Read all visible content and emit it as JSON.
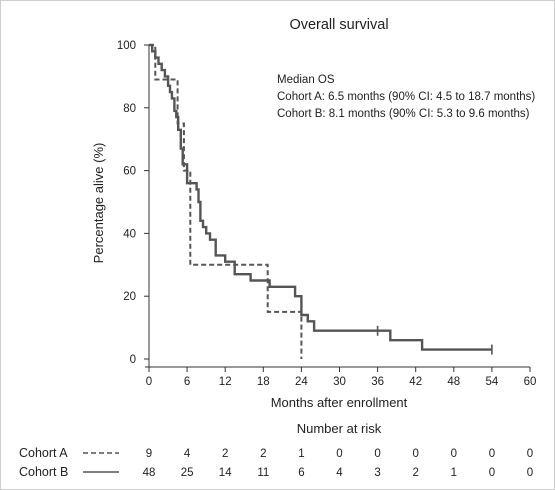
{
  "chart_data": {
    "type": "line",
    "title": "Overall survival",
    "xlabel": "Months after enrollment",
    "ylabel": "Percentage alive (%)",
    "xlim": [
      0,
      60
    ],
    "ylim": [
      0,
      100
    ],
    "x_ticks": [
      "0",
      "6",
      "12",
      "18",
      "24",
      "30",
      "36",
      "42",
      "48",
      "54",
      "60"
    ],
    "y_ticks": [
      "0",
      "20",
      "40",
      "60",
      "80",
      "100"
    ],
    "grid": false,
    "annotation": {
      "heading": "Median OS",
      "lines": [
        "Cohort A: 6.5 months (90% CI: 4.5 to 18.7 months)",
        "Cohort B: 8.1 months (90% CI: 5.3 to 9.6 months)"
      ]
    },
    "series": [
      {
        "name": "Cohort A",
        "style": "dashed",
        "color": "#555555",
        "x": [
          0,
          1,
          1,
          3,
          3,
          4.5,
          4.5,
          5.5,
          5.5,
          6.5,
          6.5,
          18.7,
          18.7,
          24,
          24
        ],
        "y": [
          100,
          100,
          89,
          89,
          89,
          89,
          75,
          75,
          60,
          60,
          30,
          30,
          15,
          15,
          0
        ]
      },
      {
        "name": "Cohort B",
        "style": "solid",
        "color": "#555555",
        "x": [
          0,
          0.5,
          0.5,
          1,
          1,
          1.5,
          1.5,
          2,
          2,
          2.5,
          2.5,
          3,
          3,
          3.3,
          3.3,
          3.6,
          3.6,
          4,
          4,
          4.3,
          4.3,
          4.6,
          4.6,
          5,
          5,
          5.3,
          5.3,
          6,
          6,
          7.5,
          7.5,
          7.8,
          7.8,
          8.1,
          8.1,
          8.5,
          8.5,
          9,
          9,
          9.6,
          9.6,
          10.5,
          10.5,
          12,
          12,
          13.5,
          13.5,
          16,
          16,
          19,
          19,
          23,
          23,
          24,
          24,
          25,
          25,
          26,
          26,
          38,
          38,
          43,
          43,
          54
        ],
        "y": [
          100,
          100,
          98,
          98,
          96,
          96,
          94,
          94,
          92,
          92,
          90,
          90,
          87,
          87,
          85,
          85,
          83,
          83,
          79,
          79,
          77,
          77,
          73,
          73,
          67,
          67,
          62,
          62,
          56,
          56,
          54,
          54,
          50,
          50,
          44,
          44,
          42,
          42,
          40,
          40,
          38,
          38,
          33,
          33,
          31,
          31,
          27,
          27,
          25,
          25,
          23,
          23,
          20,
          20,
          14,
          14,
          12,
          12,
          9,
          9,
          6,
          6,
          3,
          3
        ],
        "censor_x": [
          36,
          54
        ],
        "censor_y": [
          9,
          3
        ]
      }
    ],
    "risk_table": {
      "title": "Number at risk",
      "rows": [
        {
          "label": "Cohort A",
          "style": "dashed",
          "values": [
            "9",
            "4",
            "2",
            "2",
            "1",
            "0",
            "0",
            "0",
            "0",
            "0",
            "0"
          ]
        },
        {
          "label": "Cohort B",
          "style": "solid",
          "values": [
            "48",
            "25",
            "14",
            "11",
            "6",
            "4",
            "3",
            "2",
            "1",
            "0",
            "0"
          ]
        }
      ]
    }
  }
}
